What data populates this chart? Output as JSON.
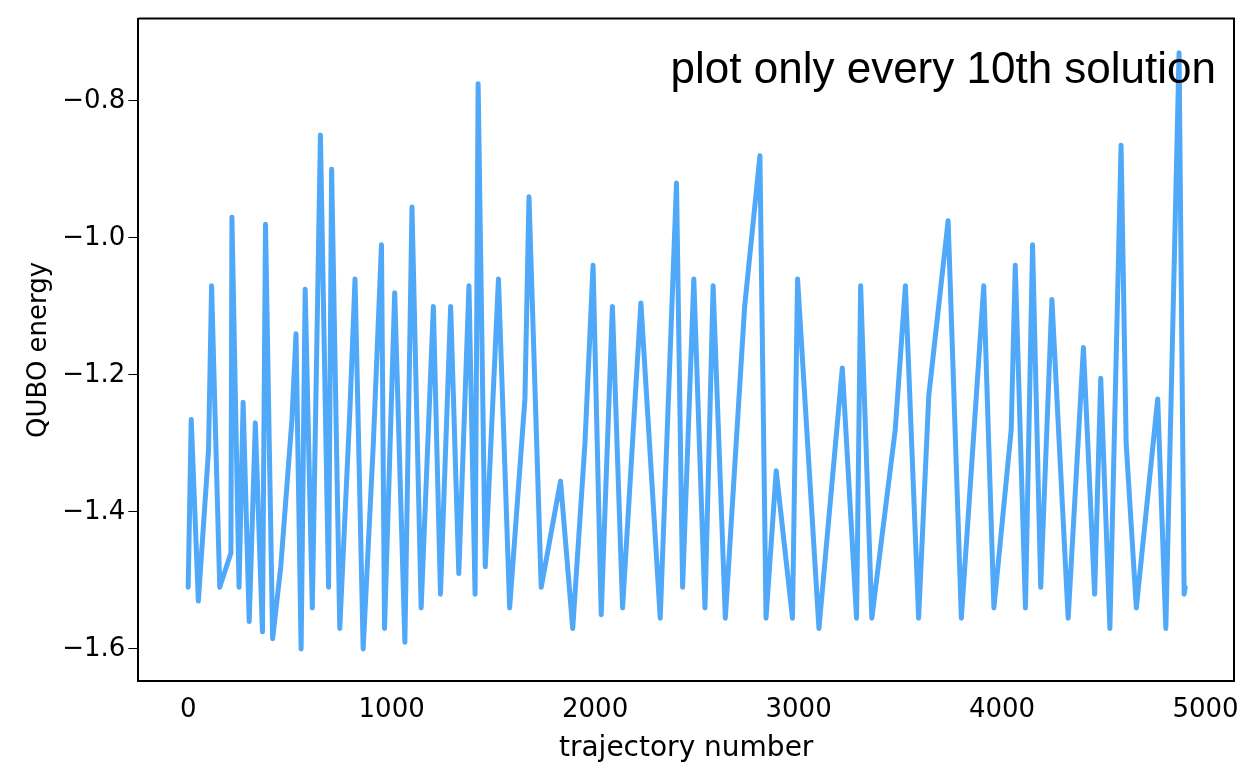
{
  "chart_data": {
    "type": "line",
    "xlabel": "trajectory number",
    "ylabel": "QUBO energy",
    "annotations": [
      "plot only every 10th solution"
    ],
    "series": [
      {
        "color": "#50a8f8",
        "x": [
          0,
          15,
          50,
          100,
          115,
          155,
          210,
          215,
          250,
          270,
          300,
          330,
          365,
          380,
          415,
          455,
          510,
          530,
          555,
          575,
          610,
          650,
          690,
          705,
          745,
          795,
          820,
          860,
          910,
          950,
          965,
          1015,
          1065,
          1100,
          1145,
          1205,
          1240,
          1290,
          1330,
          1380,
          1410,
          1425,
          1460,
          1525,
          1580,
          1655,
          1675,
          1735,
          1830,
          1890,
          1950,
          1990,
          2030,
          2085,
          2135,
          2225,
          2320,
          2400,
          2430,
          2485,
          2540,
          2580,
          2640,
          2735,
          2810,
          2840,
          2890,
          2970,
          2995,
          3100,
          3215,
          3285,
          3305,
          3360,
          3475,
          3525,
          3590,
          3640,
          3735,
          3800,
          3910,
          3960,
          4045,
          4065,
          4115,
          4150,
          4190,
          4245,
          4325,
          4400,
          4455,
          4485,
          4530,
          4585,
          4610,
          4660,
          4765,
          4805,
          4870,
          4895,
          4900
        ],
        "values": [
          -1.51,
          -1.265,
          -1.53,
          -1.31,
          -1.07,
          -1.51,
          -1.46,
          -0.97,
          -1.51,
          -1.24,
          -1.56,
          -1.27,
          -1.575,
          -0.98,
          -1.585,
          -1.48,
          -1.265,
          -1.14,
          -1.6,
          -1.075,
          -1.54,
          -0.85,
          -1.51,
          -0.9,
          -1.57,
          -1.25,
          -1.06,
          -1.6,
          -1.3,
          -1.01,
          -1.57,
          -1.08,
          -1.59,
          -0.955,
          -1.54,
          -1.1,
          -1.52,
          -1.1,
          -1.49,
          -1.07,
          -1.52,
          -0.775,
          -1.48,
          -1.06,
          -1.54,
          -1.235,
          -0.94,
          -1.51,
          -1.355,
          -1.57,
          -1.3,
          -1.04,
          -1.55,
          -1.1,
          -1.54,
          -1.095,
          -1.555,
          -0.92,
          -1.51,
          -1.06,
          -1.54,
          -1.07,
          -1.555,
          -1.1,
          -0.88,
          -1.555,
          -1.34,
          -1.555,
          -1.06,
          -1.57,
          -1.19,
          -1.555,
          -1.07,
          -1.555,
          -1.28,
          -1.07,
          -1.555,
          -1.23,
          -0.975,
          -1.555,
          -1.07,
          -1.54,
          -1.28,
          -1.04,
          -1.54,
          -1.01,
          -1.51,
          -1.09,
          -1.555,
          -1.16,
          -1.52,
          -1.205,
          -1.57,
          -0.865,
          -1.3,
          -1.54,
          -1.235,
          -1.57,
          -0.73,
          -1.52,
          -1.51
        ]
      }
    ],
    "xlim": [
      -245,
      5140
    ],
    "ylim": [
      -1.647,
      -0.68
    ],
    "xticks": [
      0,
      1000,
      2000,
      3000,
      4000,
      5000
    ],
    "yticks": [
      {
        "value": -1.6,
        "label": "−1.6"
      },
      {
        "value": -1.4,
        "label": "−1.4"
      },
      {
        "value": -1.2,
        "label": "−1.2"
      },
      {
        "value": -1.0,
        "label": "−1.0"
      },
      {
        "value": -0.8,
        "label": "−0.8"
      }
    ],
    "grid": false,
    "legend": false,
    "marker": "none",
    "line_style": "solid"
  }
}
